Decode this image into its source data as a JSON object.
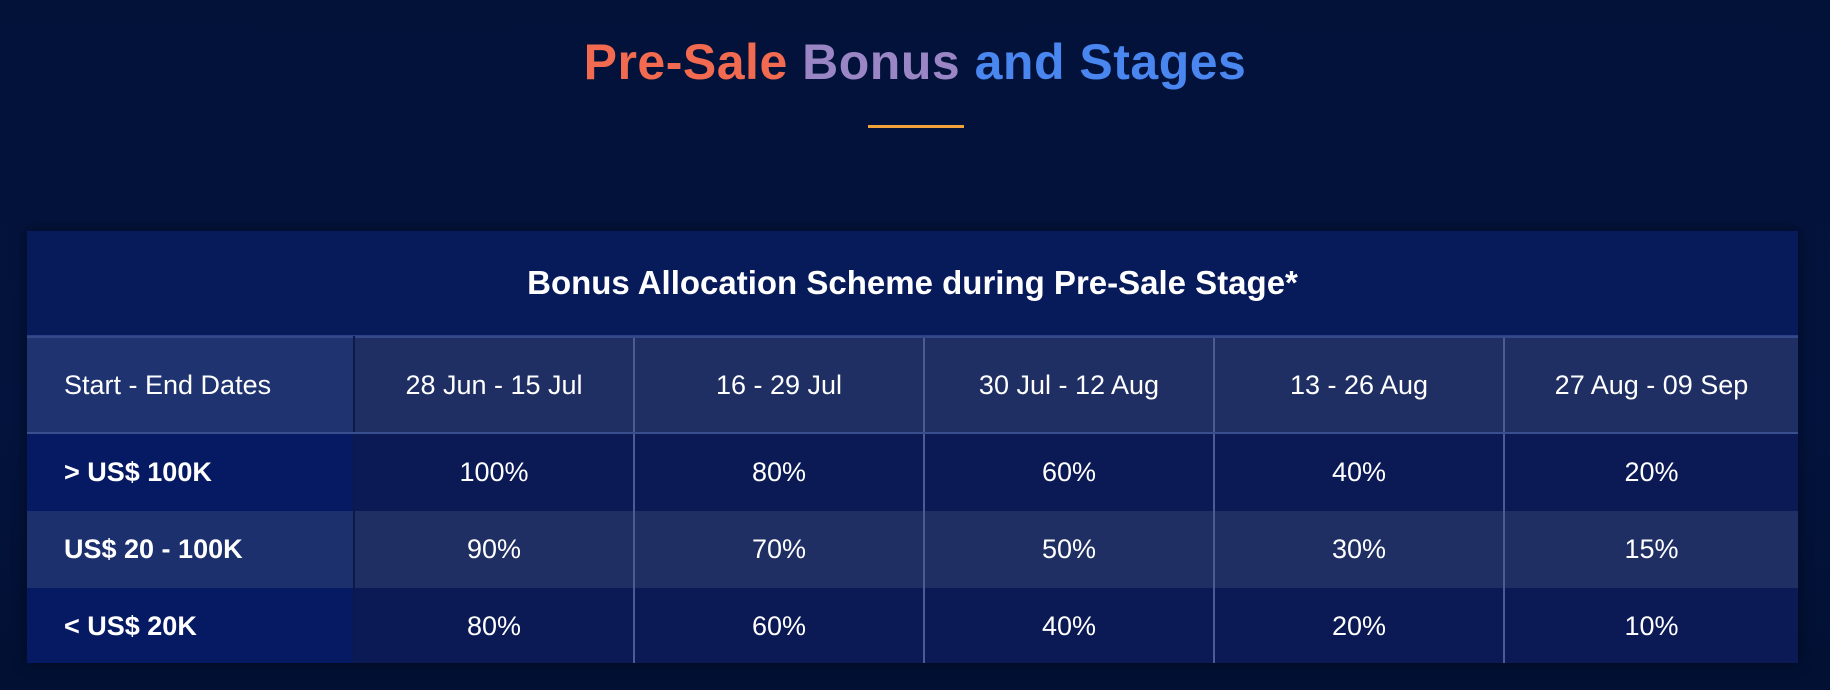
{
  "title": {
    "part_a": "Pre-Sale",
    "part_b": "Bonus",
    "part_c": "and Stages"
  },
  "colors": {
    "background": "#02113a",
    "title_orange": "#f26a4f",
    "title_purple": "#9a86c4",
    "title_blue": "#4a86f0",
    "underline": "#f2a23a",
    "table_bg": "#061a5c"
  },
  "table": {
    "caption": "Bonus Allocation Scheme during Pre-Sale Stage*",
    "corner_label": "Start - End Dates",
    "columns": [
      "28 Jun - 15 Jul",
      "16 - 29 Jul",
      "30 Jul  - 12 Aug",
      "13 - 26 Aug",
      "27 Aug - 09 Sep"
    ],
    "rows": [
      {
        "label": "> US$ 100K",
        "values": [
          "100%",
          "80%",
          "60%",
          "40%",
          "20%"
        ]
      },
      {
        "label": "US$ 20 - 100K",
        "values": [
          "90%",
          "70%",
          "50%",
          "30%",
          "15%"
        ]
      },
      {
        "label": "< US$ 20K",
        "values": [
          "80%",
          "60%",
          "40%",
          "20%",
          "10%"
        ]
      }
    ]
  }
}
